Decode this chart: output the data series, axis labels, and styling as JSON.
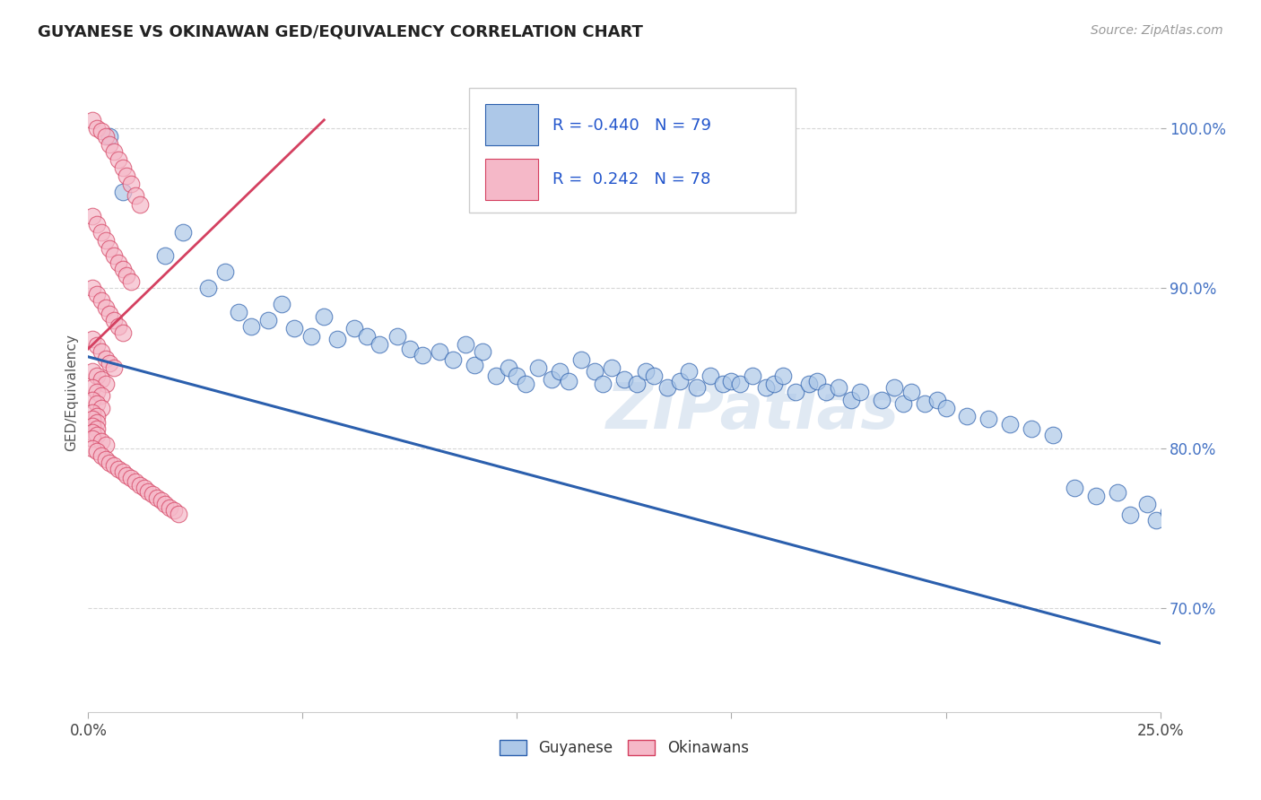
{
  "title": "GUYANESE VS OKINAWAN GED/EQUIVALENCY CORRELATION CHART",
  "source": "Source: ZipAtlas.com",
  "ylabel": "GED/Equivalency",
  "xmin": 0.0,
  "xmax": 0.25,
  "ymin": 0.635,
  "ymax": 1.035,
  "legend_r_blue": "-0.440",
  "legend_n_blue": "79",
  "legend_r_pink": " 0.242",
  "legend_n_pink": "78",
  "blue_color": "#adc8e8",
  "blue_line_color": "#2b5fad",
  "pink_color": "#f5b8c8",
  "pink_line_color": "#d44060",
  "blue_line_x": [
    0.0,
    0.25
  ],
  "blue_line_y": [
    0.857,
    0.678
  ],
  "pink_line_x": [
    0.0,
    0.055
  ],
  "pink_line_y": [
    0.862,
    1.005
  ],
  "blue_scatter_x": [
    0.005,
    0.008,
    0.018,
    0.022,
    0.028,
    0.032,
    0.035,
    0.038,
    0.042,
    0.045,
    0.048,
    0.052,
    0.055,
    0.058,
    0.062,
    0.065,
    0.068,
    0.072,
    0.075,
    0.078,
    0.082,
    0.085,
    0.088,
    0.09,
    0.092,
    0.095,
    0.098,
    0.1,
    0.102,
    0.105,
    0.108,
    0.11,
    0.112,
    0.115,
    0.118,
    0.12,
    0.122,
    0.125,
    0.128,
    0.13,
    0.132,
    0.135,
    0.138,
    0.14,
    0.142,
    0.145,
    0.148,
    0.15,
    0.152,
    0.155,
    0.158,
    0.16,
    0.162,
    0.165,
    0.168,
    0.17,
    0.172,
    0.175,
    0.178,
    0.18,
    0.185,
    0.188,
    0.19,
    0.192,
    0.195,
    0.198,
    0.2,
    0.205,
    0.21,
    0.215,
    0.22,
    0.225,
    0.23,
    0.235,
    0.24,
    0.243,
    0.247,
    0.249,
    0.252
  ],
  "blue_scatter_y": [
    0.995,
    0.96,
    0.92,
    0.935,
    0.9,
    0.91,
    0.885,
    0.876,
    0.88,
    0.89,
    0.875,
    0.87,
    0.882,
    0.868,
    0.875,
    0.87,
    0.865,
    0.87,
    0.862,
    0.858,
    0.86,
    0.855,
    0.865,
    0.852,
    0.86,
    0.845,
    0.85,
    0.845,
    0.84,
    0.85,
    0.843,
    0.848,
    0.842,
    0.855,
    0.848,
    0.84,
    0.85,
    0.843,
    0.84,
    0.848,
    0.845,
    0.838,
    0.842,
    0.848,
    0.838,
    0.845,
    0.84,
    0.842,
    0.84,
    0.845,
    0.838,
    0.84,
    0.845,
    0.835,
    0.84,
    0.842,
    0.835,
    0.838,
    0.83,
    0.835,
    0.83,
    0.838,
    0.828,
    0.835,
    0.828,
    0.83,
    0.825,
    0.82,
    0.818,
    0.815,
    0.812,
    0.808,
    0.775,
    0.77,
    0.772,
    0.758,
    0.765,
    0.755,
    0.76
  ],
  "pink_scatter_x": [
    0.001,
    0.002,
    0.003,
    0.004,
    0.005,
    0.006,
    0.007,
    0.008,
    0.009,
    0.01,
    0.011,
    0.012,
    0.001,
    0.002,
    0.003,
    0.004,
    0.005,
    0.006,
    0.007,
    0.008,
    0.009,
    0.01,
    0.001,
    0.002,
    0.003,
    0.004,
    0.005,
    0.006,
    0.007,
    0.008,
    0.001,
    0.002,
    0.003,
    0.004,
    0.005,
    0.006,
    0.001,
    0.002,
    0.003,
    0.004,
    0.001,
    0.002,
    0.003,
    0.001,
    0.002,
    0.003,
    0.001,
    0.002,
    0.001,
    0.002,
    0.001,
    0.002,
    0.001,
    0.002,
    0.001,
    0.003,
    0.004,
    0.001,
    0.002,
    0.003,
    0.004,
    0.005,
    0.006,
    0.007,
    0.008,
    0.009,
    0.01,
    0.011,
    0.012,
    0.013,
    0.014,
    0.015,
    0.016,
    0.017,
    0.018,
    0.019,
    0.02,
    0.021
  ],
  "pink_scatter_y": [
    1.005,
    1.0,
    0.998,
    0.995,
    0.99,
    0.985,
    0.98,
    0.975,
    0.97,
    0.965,
    0.958,
    0.952,
    0.945,
    0.94,
    0.935,
    0.93,
    0.925,
    0.92,
    0.916,
    0.912,
    0.908,
    0.904,
    0.9,
    0.896,
    0.892,
    0.888,
    0.884,
    0.88,
    0.876,
    0.872,
    0.868,
    0.864,
    0.86,
    0.856,
    0.853,
    0.85,
    0.848,
    0.845,
    0.843,
    0.84,
    0.838,
    0.835,
    0.833,
    0.83,
    0.828,
    0.825,
    0.822,
    0.82,
    0.818,
    0.816,
    0.814,
    0.812,
    0.81,
    0.808,
    0.806,
    0.804,
    0.802,
    0.8,
    0.798,
    0.795,
    0.793,
    0.791,
    0.789,
    0.787,
    0.785,
    0.783,
    0.781,
    0.779,
    0.777,
    0.775,
    0.773,
    0.771,
    0.769,
    0.767,
    0.765,
    0.763,
    0.761,
    0.759
  ]
}
